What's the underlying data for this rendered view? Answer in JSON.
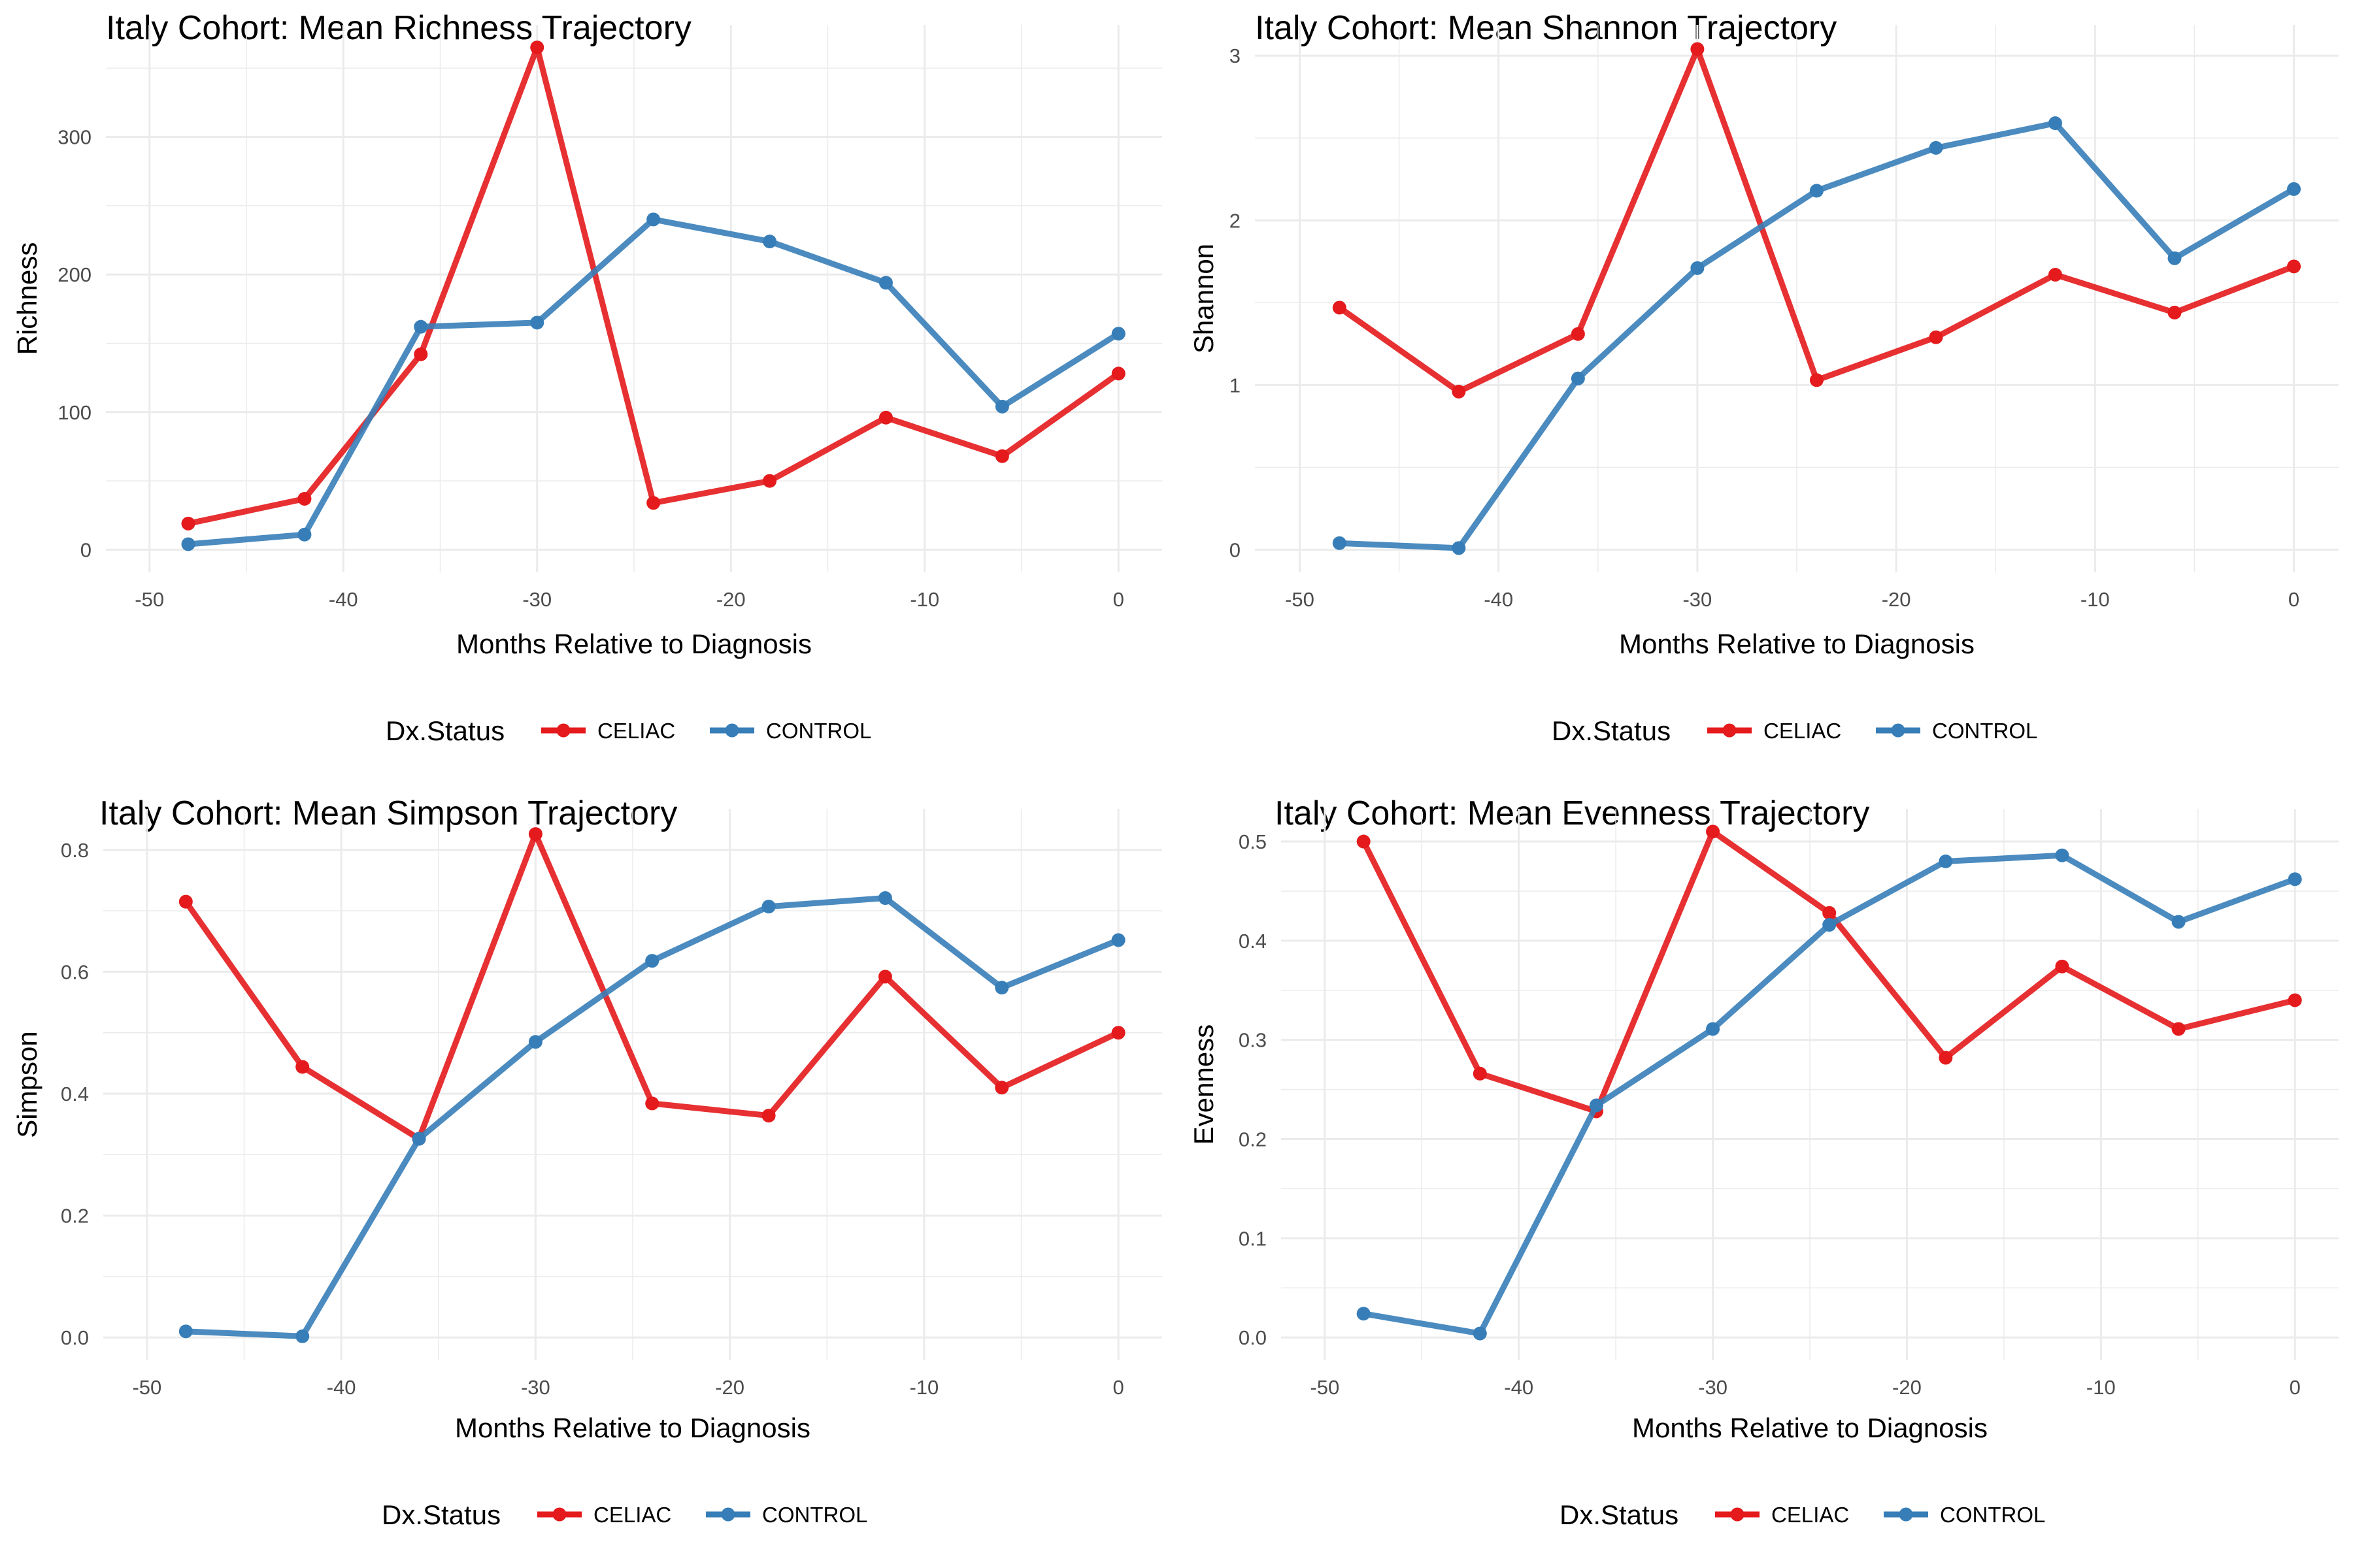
{
  "figure": {
    "legend_title": "Dx.Status",
    "legend_position": "bottom",
    "series_names": [
      "CELIAC",
      "CONTROL"
    ],
    "colors": {
      "CELIAC": "#E41A1C",
      "CONTROL": "#377EB8",
      "grid": "#EBEBEB"
    }
  },
  "chart_data": [
    {
      "type": "line",
      "title": "Italy Cohort: Mean Richness Trajectory",
      "xlabel": "Months Relative to Diagnosis",
      "ylabel": "Richness",
      "x": [
        -48,
        -42,
        -36,
        -30,
        -24,
        -18,
        -12,
        -6,
        0
      ],
      "xlim": [
        -50,
        0
      ],
      "xticks": [
        -50,
        -40,
        -30,
        -20,
        -10,
        0
      ],
      "xtick_labels": [
        "-50",
        "-40",
        "-30",
        "-20",
        "-10",
        "0"
      ],
      "ylim": [
        0,
        365
      ],
      "yticks": [
        0,
        100,
        200,
        300
      ],
      "ytick_labels": [
        "0",
        "100",
        "200",
        "300"
      ],
      "grid": true,
      "series": [
        {
          "name": "CELIAC",
          "values": [
            19,
            37,
            142,
            365,
            34,
            50,
            96,
            68,
            128
          ]
        },
        {
          "name": "CONTROL",
          "values": [
            4,
            11,
            162,
            165,
            240,
            224,
            194,
            104,
            157
          ]
        }
      ]
    },
    {
      "type": "line",
      "title": "Italy Cohort: Mean Shannon Trajectory",
      "xlabel": "Months Relative to Diagnosis",
      "ylabel": "Shannon",
      "x": [
        -48,
        -42,
        -36,
        -30,
        -24,
        -18,
        -12,
        -6,
        0
      ],
      "xlim": [
        -50,
        0
      ],
      "xticks": [
        -50,
        -40,
        -30,
        -20,
        -10,
        0
      ],
      "xtick_labels": [
        "-50",
        "-40",
        "-30",
        "-20",
        "-10",
        "0"
      ],
      "ylim": [
        0,
        3.05
      ],
      "yticks": [
        0,
        1,
        2,
        3
      ],
      "ytick_labels": [
        "0",
        "1",
        "2",
        "3"
      ],
      "grid": true,
      "series": [
        {
          "name": "CELIAC",
          "values": [
            1.47,
            0.96,
            1.31,
            3.04,
            1.03,
            1.29,
            1.67,
            1.44,
            1.72
          ]
        },
        {
          "name": "CONTROL",
          "values": [
            0.04,
            0.01,
            1.04,
            1.71,
            2.18,
            2.44,
            2.59,
            1.77,
            2.19
          ]
        }
      ]
    },
    {
      "type": "line",
      "title": "Italy Cohort: Mean Simpson Trajectory",
      "xlabel": "Months Relative to Diagnosis",
      "ylabel": "Simpson",
      "x": [
        -48,
        -42,
        -36,
        -30,
        -24,
        -18,
        -12,
        -6,
        0
      ],
      "xlim": [
        -50,
        0
      ],
      "xticks": [
        -50,
        -40,
        -30,
        -20,
        -10,
        0
      ],
      "xtick_labels": [
        "-50",
        "-40",
        "-30",
        "-20",
        "-10",
        "0"
      ],
      "ylim": [
        0,
        0.83
      ],
      "yticks": [
        0,
        0.2,
        0.4,
        0.6,
        0.8
      ],
      "ytick_labels": [
        "0.0",
        "0.2",
        "0.4",
        "0.6",
        "0.8"
      ],
      "grid": true,
      "series": [
        {
          "name": "CELIAC",
          "values": [
            0.715,
            0.444,
            0.326,
            0.826,
            0.384,
            0.364,
            0.592,
            0.41,
            0.5
          ]
        },
        {
          "name": "CONTROL",
          "values": [
            0.01,
            0.002,
            0.326,
            0.485,
            0.618,
            0.707,
            0.721,
            0.574,
            0.652
          ]
        }
      ]
    },
    {
      "type": "line",
      "title": "Italy Cohort: Mean Evenness Trajectory",
      "xlabel": "Months Relative to Diagnosis",
      "ylabel": "Evenness",
      "x": [
        -48,
        -42,
        -36,
        -30,
        -24,
        -18,
        -12,
        -6,
        0
      ],
      "xlim": [
        -50,
        0
      ],
      "xticks": [
        -50,
        -40,
        -30,
        -20,
        -10,
        0
      ],
      "xtick_labels": [
        "-50",
        "-40",
        "-30",
        "-20",
        "-10",
        "0"
      ],
      "ylim": [
        0,
        0.51
      ],
      "yticks": [
        0,
        0.1,
        0.2,
        0.3,
        0.4,
        0.5
      ],
      "ytick_labels": [
        "0.0",
        "0.1",
        "0.2",
        "0.3",
        "0.4",
        "0.5"
      ],
      "grid": true,
      "series": [
        {
          "name": "CELIAC",
          "values": [
            0.5,
            0.266,
            0.228,
            0.51,
            0.428,
            0.282,
            0.374,
            0.311,
            0.34
          ]
        },
        {
          "name": "CONTROL",
          "values": [
            0.024,
            0.004,
            0.234,
            0.311,
            0.416,
            0.48,
            0.486,
            0.419,
            0.462
          ]
        }
      ]
    }
  ]
}
